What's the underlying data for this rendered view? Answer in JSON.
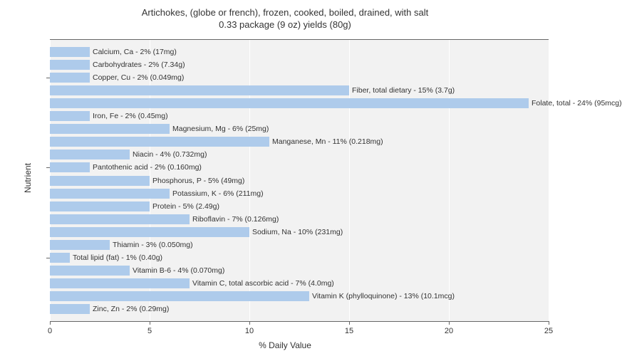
{
  "chart": {
    "type": "bar",
    "title_line1": "Artichokes, (globe or french), frozen, cooked, boiled, drained, with salt",
    "title_line2": "0.33 package (9 oz) yields (80g)",
    "title_fontsize": 13,
    "x_label": "% Daily Value",
    "y_label": "Nutrient",
    "label_fontsize": 12,
    "x_min": 0,
    "x_max": 25,
    "x_tick_step": 5,
    "x_ticks": [
      0,
      5,
      10,
      15,
      20,
      25
    ],
    "plot_background": "#f2f2f2",
    "grid_color": "#ffffff",
    "bar_color": "#aecbeb",
    "text_color": "#333333",
    "axis_color": "#666666",
    "bar_label_fontsize": 10.5,
    "tick_label_fontsize": 11,
    "bars": [
      {
        "label": "Calcium, Ca - 2% (17mg)",
        "value": 2
      },
      {
        "label": "Carbohydrates - 2% (7.34g)",
        "value": 2
      },
      {
        "label": "Copper, Cu - 2% (0.049mg)",
        "value": 2
      },
      {
        "label": "Fiber, total dietary - 15% (3.7g)",
        "value": 15
      },
      {
        "label": "Folate, total - 24% (95mcg)",
        "value": 24
      },
      {
        "label": "Iron, Fe - 2% (0.45mg)",
        "value": 2
      },
      {
        "label": "Magnesium, Mg - 6% (25mg)",
        "value": 6
      },
      {
        "label": "Manganese, Mn - 11% (0.218mg)",
        "value": 11
      },
      {
        "label": "Niacin - 4% (0.732mg)",
        "value": 4
      },
      {
        "label": "Pantothenic acid - 2% (0.160mg)",
        "value": 2
      },
      {
        "label": "Phosphorus, P - 5% (49mg)",
        "value": 5
      },
      {
        "label": "Potassium, K - 6% (211mg)",
        "value": 6
      },
      {
        "label": "Protein - 5% (2.49g)",
        "value": 5
      },
      {
        "label": "Riboflavin - 7% (0.126mg)",
        "value": 7
      },
      {
        "label": "Sodium, Na - 10% (231mg)",
        "value": 10
      },
      {
        "label": "Thiamin - 3% (0.050mg)",
        "value": 3
      },
      {
        "label": "Total lipid (fat) - 1% (0.40g)",
        "value": 1
      },
      {
        "label": "Vitamin B-6 - 4% (0.070mg)",
        "value": 4
      },
      {
        "label": "Vitamin C, total ascorbic acid - 7% (4.0mg)",
        "value": 7
      },
      {
        "label": "Vitamin K (phylloquinone) - 13% (10.1mcg)",
        "value": 13
      },
      {
        "label": "Zinc, Zn - 2% (0.29mg)",
        "value": 2
      }
    ],
    "group_ticks": [
      2,
      9,
      16
    ]
  }
}
